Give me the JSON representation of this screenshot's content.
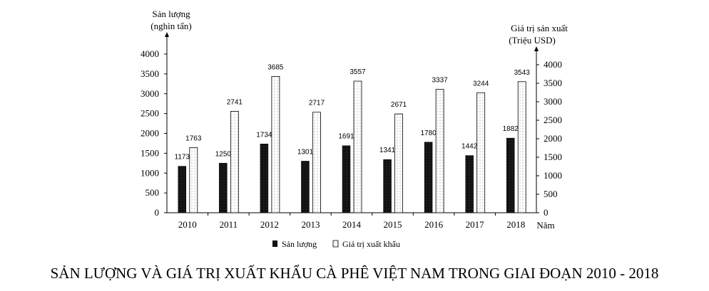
{
  "chart_data": {
    "type": "bar",
    "title": "SẢN LƯỢNG VÀ GIÁ TRỊ XUẤT KHẨU CÀ PHÊ VIỆT NAM TRONG GIAI ĐOẠN 2010 - 2018",
    "categories": [
      "2010",
      "2011",
      "2012",
      "2013",
      "2014",
      "2015",
      "2016",
      "2017",
      "2018"
    ],
    "xlabel": "Năm",
    "ylabel_left_line1": "Sản lượng",
    "ylabel_left_line2": "(nghìn tấn)",
    "ylabel_right_line1": "Giá trị sản xuất",
    "ylabel_right_line2": "(Triệu USD)",
    "ylim_left": [
      0,
      4000
    ],
    "ylim_right": [
      0,
      4000
    ],
    "left_ticks": [
      0,
      500,
      1000,
      1500,
      2000,
      2500,
      3000,
      3500,
      4000
    ],
    "right_ticks": [
      0,
      500,
      1000,
      1500,
      2000,
      2500,
      3000,
      3500,
      4000
    ],
    "series": [
      {
        "name": "Sản lượng",
        "axis": "left",
        "color": "#111111",
        "values": [
          1173,
          1250,
          1734,
          1301,
          1691,
          1341,
          1780,
          1442,
          1882
        ]
      },
      {
        "name": "Giá trị xuất khẩu",
        "axis": "right",
        "color": "#ffffff",
        "values": [
          1763,
          2741,
          3685,
          2717,
          3557,
          2671,
          3337,
          3244,
          3543
        ]
      }
    ],
    "legend_position": "bottom-center",
    "grid": false
  }
}
